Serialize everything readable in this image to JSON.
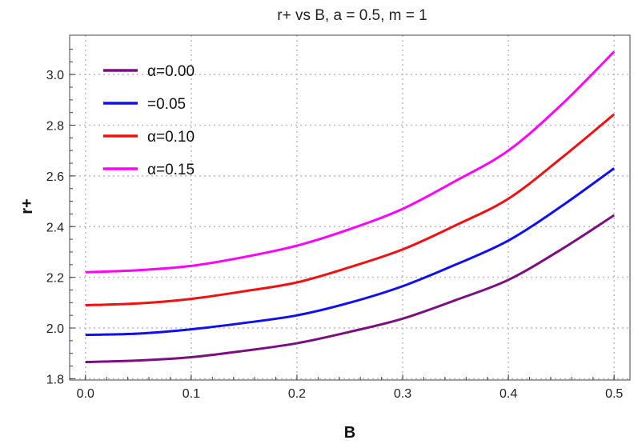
{
  "chart_data": {
    "type": "line",
    "title": "r+ vs B, a = 0.5,  m = 1",
    "xlabel": "B",
    "ylabel": "r+",
    "xlim": [
      -0.015,
      0.515
    ],
    "ylim": [
      1.795,
      3.155
    ],
    "xticks": [
      "0.0",
      "0.1",
      "0.2",
      "0.3",
      "0.4",
      "0.5"
    ],
    "yticks": [
      "1.8",
      "2.0",
      "2.2",
      "2.4",
      "2.6",
      "2.8",
      "3.0"
    ],
    "grid": true,
    "legend_position": "top-left",
    "x": [
      0,
      0.05,
      0.1,
      0.15,
      0.2,
      0.25,
      0.3,
      0.35,
      0.4,
      0.45,
      0.5
    ],
    "series": [
      {
        "name": "α=0.00",
        "color": "#7b0f7f",
        "values": [
          1.866,
          1.872,
          1.885,
          1.91,
          1.94,
          1.985,
          2.037,
          2.11,
          2.19,
          2.31,
          2.445
        ]
      },
      {
        "name": "=0.05",
        "color": "#1010ee",
        "values": [
          1.973,
          1.978,
          1.995,
          2.02,
          2.05,
          2.1,
          2.165,
          2.25,
          2.345,
          2.48,
          2.63
        ]
      },
      {
        "name": "α=0.10",
        "color": "#ee1111",
        "values": [
          2.09,
          2.097,
          2.115,
          2.145,
          2.18,
          2.24,
          2.31,
          2.405,
          2.51,
          2.67,
          2.843
        ]
      },
      {
        "name": "α=0.15",
        "color": "#ff00ff",
        "values": [
          2.22,
          2.228,
          2.245,
          2.28,
          2.325,
          2.39,
          2.47,
          2.58,
          2.7,
          2.88,
          3.09
        ]
      }
    ]
  }
}
